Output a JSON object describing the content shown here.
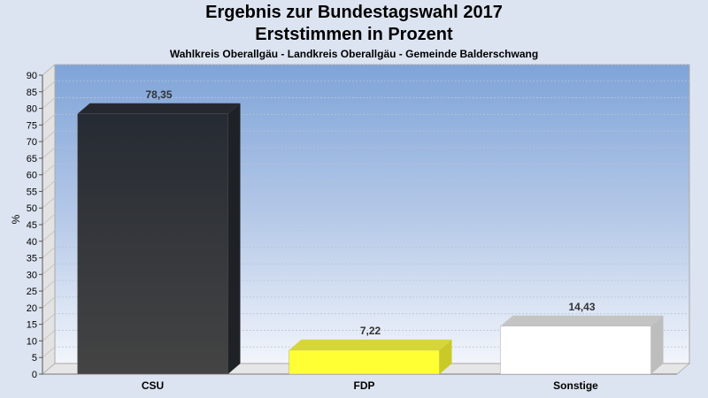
{
  "chart_data": {
    "type": "bar",
    "title": "Ergebnis zur Bundestagswahl 2017",
    "subtitle": "Erststimmen in Prozent",
    "subtitle2": "Wahlkreis Oberallgäu - Landkreis Oberallgäu - Gemeinde Balderschwang",
    "ylabel": "%",
    "xlabel": "",
    "ylim": [
      0,
      90
    ],
    "ytick_step": 5,
    "grid": true,
    "categories": [
      "CSU",
      "FDP",
      "Sonstige"
    ],
    "values": [
      78.35,
      7.22,
      14.43
    ],
    "value_labels": [
      "78,35",
      "7,22",
      "14,43"
    ],
    "colors": [
      "#2f343b",
      "#ffff33",
      "#ffffff"
    ],
    "side_colors": [
      "#1e2126",
      "#c9c928",
      "#bdbdbd"
    ],
    "top_colors": [
      "#25292f",
      "#d6d63a",
      "#c4c4c4"
    ]
  }
}
